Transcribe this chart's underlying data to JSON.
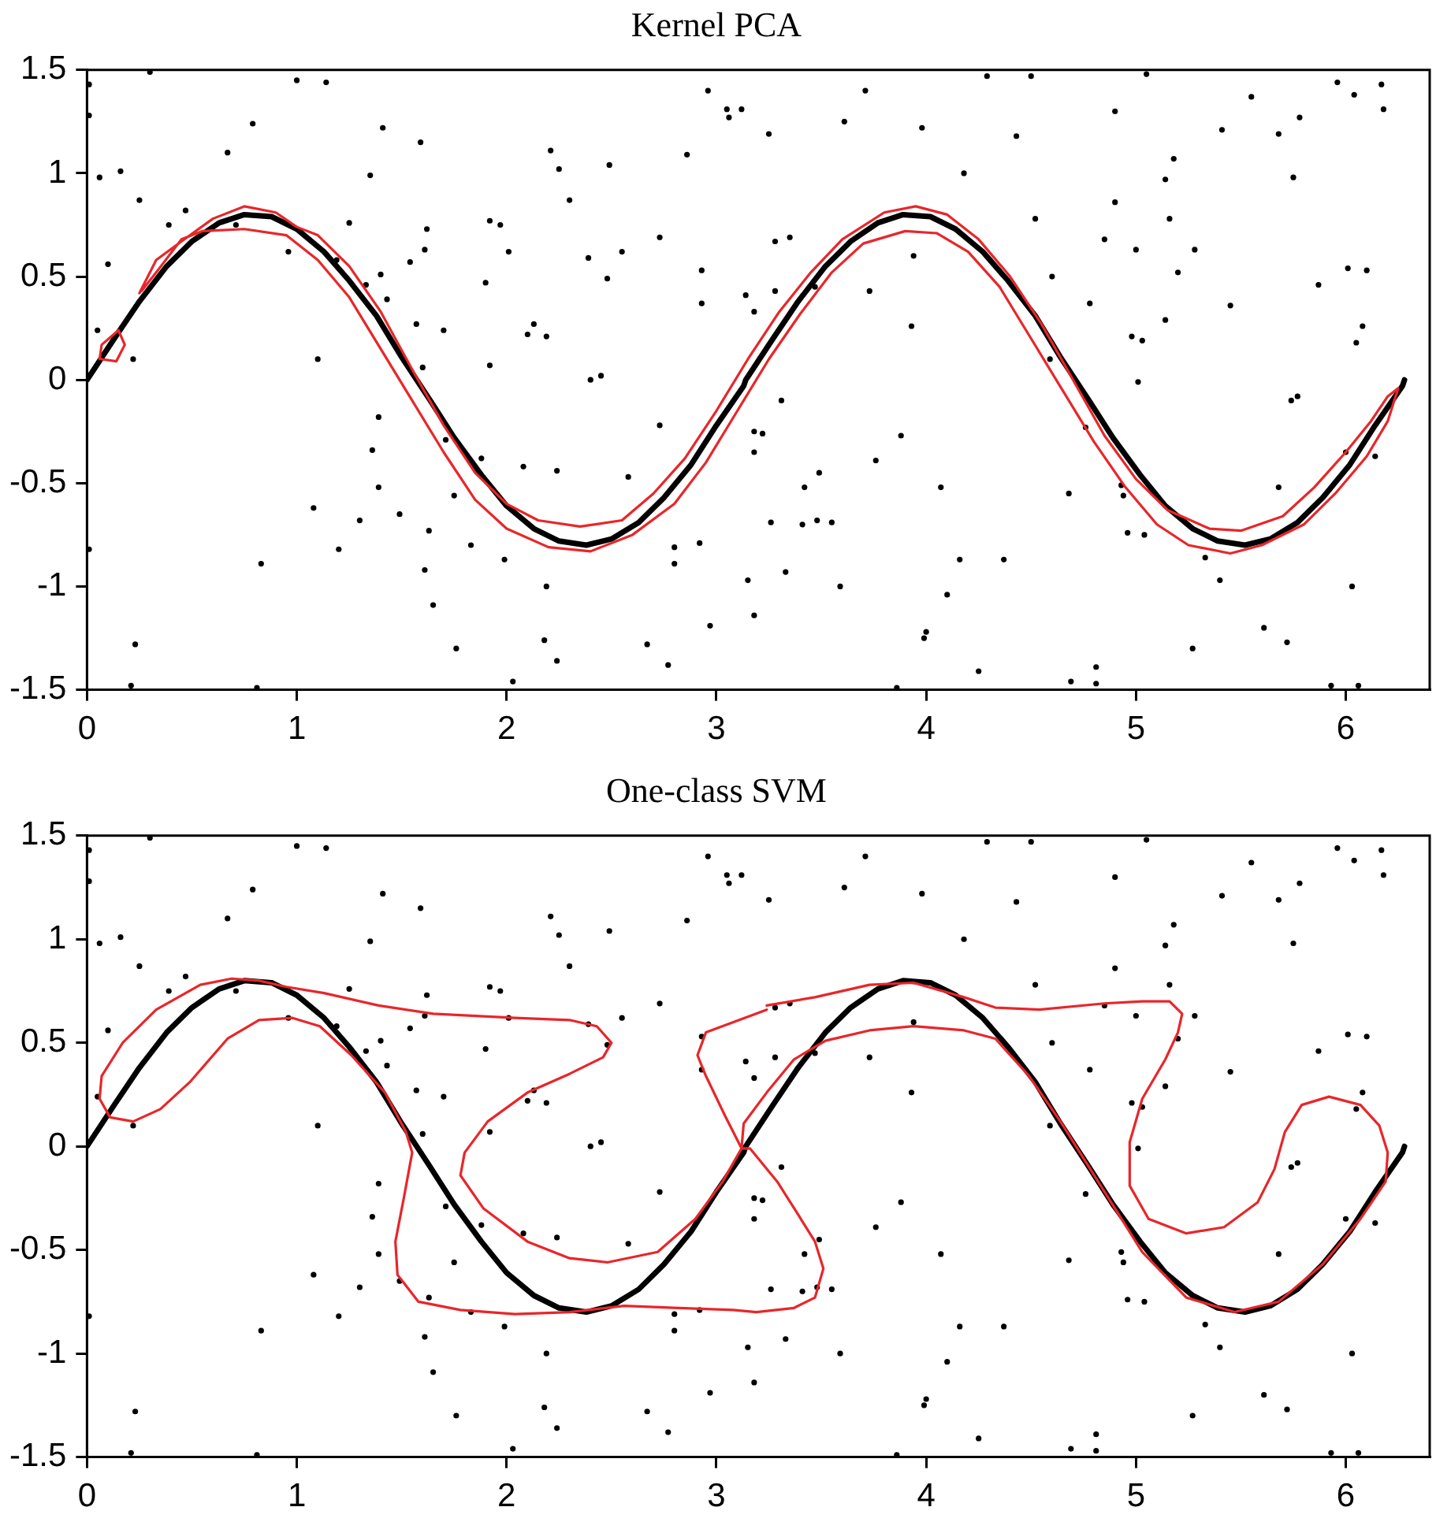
{
  "chart_data": [
    {
      "type": "line",
      "title": "Kernel PCA",
      "xlim": [
        0,
        6.4
      ],
      "xticks": [
        0,
        1,
        2,
        3,
        4,
        5,
        6
      ],
      "ylim": [
        -1.5,
        1.5
      ],
      "yticks": [
        -1.5,
        -1,
        -0.5,
        0,
        0.5,
        1,
        1.5
      ],
      "series": [
        {
          "type": "scatter",
          "marker": "circle",
          "color": "#000000",
          "x": [
            0.3,
            0.01,
            0.01,
            1.0,
            1.14,
            0.79,
            1.41,
            1.59,
            0.67,
            0.16,
            0.06,
            1.35,
            0.25,
            0.47,
            0.39,
            0.71,
            1.25,
            1.62,
            1.92,
            1.97,
            0.96,
            1.61,
            1.54,
            2.01,
            0.1,
            1.19,
            1.4,
            1.9,
            1.33,
            1.43,
            1.57,
            1.7,
            2.1,
            2.13,
            0.05,
            0.22,
            1.1,
            1.6,
            1.92,
            1.39,
            1.36,
            1.71,
            1.88,
            2.08,
            1.39,
            1.75,
            1.08,
            1.3,
            1.49,
            1.63,
            1.83,
            1.99,
            0.01,
            1.2,
            0.83,
            1.61,
            1.65,
            0.23,
            1.76,
            0.21,
            0.81,
            2.03,
            2.96,
            3.71,
            3.05,
            3.12,
            3.06,
            3.61,
            3.98,
            3.25,
            2.21,
            2.86,
            2.25,
            2.49,
            4.18,
            2.3,
            2.73,
            3.28,
            3.35,
            2.39,
            2.55,
            3.94,
            2.93,
            2.48,
            3.14,
            3.28,
            3.73,
            2.93,
            3.18,
            3.47,
            3.93,
            2.19,
            2.4,
            2.45,
            3.31,
            2.73,
            3.18,
            3.22,
            3.18,
            3.88,
            3.76,
            2.24,
            2.58,
            3.49,
            3.42,
            4.07,
            3.26,
            3.41,
            3.48,
            3.55,
            2.8,
            2.92,
            2.8,
            3.33,
            2.19,
            3.15,
            3.59,
            4.16,
            4.1,
            3.18,
            2.97,
            2.18,
            2.67,
            4.0,
            3.99,
            2.24,
            2.77,
            4.25,
            3.86,
            4.29,
            4.5,
            5.05,
            5.96,
            6.04,
            6.17,
            6.18,
            5.55,
            4.9,
            5.41,
            5.68,
            5.78,
            4.43,
            5.18,
            5.14,
            5.75,
            4.9,
            4.52,
            5.16,
            4.85,
            5.0,
            5.28,
            5.2,
            4.6,
            6.01,
            6.1,
            5.87,
            4.78,
            5.45,
            5.14,
            4.98,
            5.03,
            6.08,
            6.05,
            4.59,
            5.01,
            5.74,
            5.77,
            4.76,
            6.14,
            6.0,
            5.68,
            4.93,
            4.94,
            4.68,
            4.96,
            5.04,
            4.37,
            5.33,
            5.4,
            6.03,
            5.61,
            5.72,
            5.27,
            4.81,
            4.69,
            4.81,
            5.93,
            6.06
          ],
          "values": [
            1.49,
            1.43,
            1.28,
            1.45,
            1.44,
            1.24,
            1.22,
            1.15,
            1.1,
            1.01,
            0.98,
            0.99,
            0.87,
            0.82,
            0.75,
            0.75,
            0.76,
            0.73,
            0.77,
            0.75,
            0.62,
            0.63,
            0.57,
            0.62,
            0.56,
            0.58,
            0.51,
            0.47,
            0.46,
            0.39,
            0.27,
            0.24,
            0.22,
            0.27,
            0.24,
            0.1,
            0.1,
            0.06,
            0.07,
            -0.18,
            -0.34,
            -0.29,
            -0.38,
            -0.42,
            -0.52,
            -0.56,
            -0.62,
            -0.68,
            -0.65,
            -0.73,
            -0.8,
            -0.87,
            -0.82,
            -0.82,
            -0.89,
            -0.92,
            -1.09,
            -1.28,
            -1.3,
            -1.48,
            -1.49,
            -1.46,
            1.4,
            1.4,
            1.31,
            1.31,
            1.27,
            1.25,
            1.22,
            1.19,
            1.11,
            1.09,
            1.02,
            1.04,
            1.0,
            0.87,
            0.69,
            0.67,
            0.69,
            0.59,
            0.62,
            0.6,
            0.53,
            0.49,
            0.41,
            0.43,
            0.43,
            0.37,
            0.33,
            0.45,
            0.26,
            0.21,
            0,
            0.02,
            -0.1,
            -0.22,
            -0.25,
            -0.26,
            -0.35,
            -0.27,
            -0.39,
            -0.44,
            -0.47,
            -0.45,
            -0.52,
            -0.52,
            -0.69,
            -0.7,
            -0.68,
            -0.69,
            -0.81,
            -0.79,
            -0.89,
            -0.93,
            -1.0,
            -0.97,
            -1.0,
            -0.87,
            -1.04,
            -1.14,
            -1.19,
            -1.26,
            -1.28,
            -1.22,
            -1.25,
            -1.36,
            -1.38,
            -1.41,
            -1.49,
            1.47,
            1.47,
            1.48,
            1.44,
            1.38,
            1.43,
            1.31,
            1.37,
            1.3,
            1.21,
            1.19,
            1.27,
            1.18,
            1.07,
            0.97,
            0.98,
            0.86,
            0.78,
            0.78,
            0.68,
            0.63,
            0.63,
            0.52,
            0.5,
            0.54,
            0.53,
            0.46,
            0.37,
            0.36,
            0.29,
            0.21,
            0.19,
            0.26,
            0.18,
            0.1,
            -0.01,
            -0.1,
            -0.08,
            -0.23,
            -0.37,
            -0.35,
            -0.52,
            -0.51,
            -0.56,
            -0.55,
            -0.74,
            -0.75,
            -0.87,
            -0.86,
            -0.97,
            -1.0,
            -1.2,
            -1.27,
            -1.3,
            -1.39,
            -1.46,
            -1.47,
            -1.48,
            -1.48
          ]
        },
        {
          "type": "line",
          "marker": "none",
          "color": "#000000",
          "x": [
            0,
            0.13,
            0.25,
            0.38,
            0.5,
            0.63,
            0.75,
            0.88,
            1,
            1.13,
            1.25,
            1.38,
            1.5,
            1.63,
            1.75,
            1.88,
            2,
            2.13,
            2.25,
            2.38,
            2.5,
            2.63,
            2.75,
            2.88,
            3,
            3.13,
            3.14,
            3.27,
            3.39,
            3.52,
            3.64,
            3.77,
            3.89,
            4.02,
            4.14,
            4.27,
            4.39,
            4.52,
            4.64,
            4.77,
            4.89,
            5.02,
            5.14,
            5.27,
            5.39,
            5.52,
            5.64,
            5.77,
            5.89,
            6.02,
            6.14,
            6.27,
            6.28
          ],
          "values": [
            0,
            0.2,
            0.38,
            0.55,
            0.67,
            0.76,
            0.8,
            0.79,
            0.73,
            0.62,
            0.48,
            0.31,
            0.11,
            -0.09,
            -0.28,
            -0.46,
            -0.61,
            -0.72,
            -0.78,
            -0.8,
            -0.77,
            -0.69,
            -0.57,
            -0.41,
            -0.22,
            -0.03,
            0,
            0.2,
            0.38,
            0.55,
            0.67,
            0.76,
            0.8,
            0.79,
            0.73,
            0.62,
            0.48,
            0.31,
            0.11,
            -0.09,
            -0.28,
            -0.46,
            -0.61,
            -0.72,
            -0.78,
            -0.8,
            -0.77,
            -0.69,
            -0.57,
            -0.41,
            -0.22,
            -0.03,
            0
          ]
        },
        {
          "marker": "none",
          "color": "#e8262a",
          "x": [
            0.25,
            0.33,
            0.45,
            0.6,
            0.75,
            0.9,
            1.0,
            1.1,
            1.25,
            1.4,
            1.55,
            1.7,
            1.85,
            2.0,
            2.15,
            2.35,
            2.55,
            2.7,
            2.85,
            3.0,
            3.15,
            3.3,
            3.45,
            3.6,
            3.8,
            3.95,
            4.1,
            4.25,
            4.4,
            4.55,
            4.7,
            4.85,
            5.0,
            5.15,
            5.35,
            5.5,
            5.7,
            5.85,
            6.0,
            6.12,
            6.2,
            6.25,
            6.2,
            6.1,
            5.95,
            5.8,
            5.6,
            5.45,
            5.25,
            5.1,
            4.95,
            4.8,
            4.65,
            4.5,
            4.35,
            4.2,
            4.05,
            3.9,
            3.7,
            3.55,
            3.4,
            3.25,
            3.1,
            2.95,
            2.8,
            2.6,
            2.4,
            2.2,
            2.0,
            1.85,
            1.7,
            1.55,
            1.4,
            1.25,
            1.1,
            0.95,
            0.75,
            0.55,
            0.45,
            0.33,
            0.26
          ],
          "values": [
            0.42,
            0.58,
            0.67,
            0.78,
            0.84,
            0.81,
            0.74,
            0.7,
            0.55,
            0.33,
            0.05,
            -0.22,
            -0.45,
            -0.6,
            -0.68,
            -0.71,
            -0.68,
            -0.55,
            -0.38,
            -0.15,
            0.1,
            0.33,
            0.52,
            0.68,
            0.81,
            0.84,
            0.8,
            0.68,
            0.5,
            0.27,
            0,
            -0.27,
            -0.48,
            -0.63,
            -0.72,
            -0.73,
            -0.66,
            -0.52,
            -0.35,
            -0.2,
            -0.08,
            -0.04,
            -0.2,
            -0.37,
            -0.55,
            -0.7,
            -0.8,
            -0.84,
            -0.8,
            -0.7,
            -0.52,
            -0.3,
            -0.05,
            0.2,
            0.45,
            0.62,
            0.71,
            0.72,
            0.66,
            0.52,
            0.32,
            0.1,
            -0.15,
            -0.4,
            -0.6,
            -0.75,
            -0.83,
            -0.81,
            -0.72,
            -0.58,
            -0.35,
            -0.1,
            0.15,
            0.4,
            0.58,
            0.7,
            0.73,
            0.72,
            0.68,
            0.52,
            0.43
          ]
        },
        {
          "marker": "none",
          "color": "#e8262a",
          "x": [
            0.06,
            0.07,
            0.15,
            0.18,
            0.14,
            0.07
          ],
          "values": [
            0.1,
            0.17,
            0.24,
            0.17,
            0.09,
            0.1
          ]
        }
      ]
    },
    {
      "type": "line",
      "title": "One-class SVM",
      "xlim": [
        0,
        6.4
      ],
      "xticks": [
        0,
        1,
        2,
        3,
        4,
        5,
        6
      ],
      "ylim": [
        -1.5,
        1.5
      ],
      "yticks": [
        -1.5,
        -1,
        -0.5,
        0,
        0.5,
        1,
        1.5
      ],
      "series": [
        {
          "type": "scatter",
          "marker": "circle",
          "color": "#000000",
          "x": [
            0.3,
            0.01,
            0.01,
            1.0,
            1.14,
            0.79,
            1.41,
            1.59,
            0.67,
            0.16,
            0.06,
            1.35,
            0.25,
            0.47,
            0.39,
            0.71,
            1.25,
            1.62,
            1.92,
            1.97,
            0.96,
            1.61,
            1.54,
            2.01,
            0.1,
            1.19,
            1.4,
            1.9,
            1.33,
            1.43,
            1.57,
            1.7,
            2.1,
            2.13,
            0.05,
            0.22,
            1.1,
            1.6,
            1.92,
            1.39,
            1.36,
            1.71,
            1.88,
            2.08,
            1.39,
            1.75,
            1.08,
            1.3,
            1.49,
            1.63,
            1.83,
            1.99,
            0.01,
            1.2,
            0.83,
            1.61,
            1.65,
            0.23,
            1.76,
            0.21,
            0.81,
            2.03,
            2.96,
            3.71,
            3.05,
            3.12,
            3.06,
            3.61,
            3.98,
            3.25,
            2.21,
            2.86,
            2.25,
            2.49,
            4.18,
            2.3,
            2.73,
            3.28,
            3.35,
            2.39,
            2.55,
            3.94,
            2.93,
            2.48,
            3.14,
            3.28,
            3.73,
            2.93,
            3.18,
            3.47,
            3.93,
            2.19,
            2.4,
            2.45,
            3.31,
            2.73,
            3.18,
            3.22,
            3.18,
            3.88,
            3.76,
            2.24,
            2.58,
            3.49,
            3.42,
            4.07,
            3.26,
            3.41,
            3.48,
            3.55,
            2.8,
            2.92,
            2.8,
            3.33,
            2.19,
            3.15,
            3.59,
            4.16,
            4.1,
            3.18,
            2.97,
            2.18,
            2.67,
            4.0,
            3.99,
            2.24,
            2.77,
            4.25,
            3.86,
            4.29,
            4.5,
            5.05,
            5.96,
            6.04,
            6.17,
            6.18,
            5.55,
            4.9,
            5.41,
            5.68,
            5.78,
            4.43,
            5.18,
            5.14,
            5.75,
            4.9,
            4.52,
            5.16,
            4.85,
            5.0,
            5.28,
            5.2,
            4.6,
            6.01,
            6.1,
            5.87,
            4.78,
            5.45,
            5.14,
            4.98,
            5.03,
            6.08,
            6.05,
            4.59,
            5.01,
            5.74,
            5.77,
            4.76,
            6.14,
            6.0,
            5.68,
            4.93,
            4.94,
            4.68,
            4.96,
            5.04,
            4.37,
            5.33,
            5.4,
            6.03,
            5.61,
            5.72,
            5.27,
            4.81,
            4.69,
            4.81,
            5.93,
            6.06
          ],
          "values": [
            1.49,
            1.43,
            1.28,
            1.45,
            1.44,
            1.24,
            1.22,
            1.15,
            1.1,
            1.01,
            0.98,
            0.99,
            0.87,
            0.82,
            0.75,
            0.75,
            0.76,
            0.73,
            0.77,
            0.75,
            0.62,
            0.63,
            0.57,
            0.62,
            0.56,
            0.58,
            0.51,
            0.47,
            0.46,
            0.39,
            0.27,
            0.24,
            0.22,
            0.27,
            0.24,
            0.1,
            0.1,
            0.06,
            0.07,
            -0.18,
            -0.34,
            -0.29,
            -0.38,
            -0.42,
            -0.52,
            -0.56,
            -0.62,
            -0.68,
            -0.65,
            -0.73,
            -0.8,
            -0.87,
            -0.82,
            -0.82,
            -0.89,
            -0.92,
            -1.09,
            -1.28,
            -1.3,
            -1.48,
            -1.49,
            -1.46,
            1.4,
            1.4,
            1.31,
            1.31,
            1.27,
            1.25,
            1.22,
            1.19,
            1.11,
            1.09,
            1.02,
            1.04,
            1.0,
            0.87,
            0.69,
            0.67,
            0.69,
            0.59,
            0.62,
            0.6,
            0.53,
            0.49,
            0.41,
            0.43,
            0.43,
            0.37,
            0.33,
            0.45,
            0.26,
            0.21,
            0,
            0.02,
            -0.1,
            -0.22,
            -0.25,
            -0.26,
            -0.35,
            -0.27,
            -0.39,
            -0.44,
            -0.47,
            -0.45,
            -0.52,
            -0.52,
            -0.69,
            -0.7,
            -0.68,
            -0.69,
            -0.81,
            -0.79,
            -0.89,
            -0.93,
            -1.0,
            -0.97,
            -1.0,
            -0.87,
            -1.04,
            -1.14,
            -1.19,
            -1.26,
            -1.28,
            -1.22,
            -1.25,
            -1.36,
            -1.38,
            -1.41,
            -1.49,
            1.47,
            1.47,
            1.48,
            1.44,
            1.38,
            1.43,
            1.31,
            1.37,
            1.3,
            1.21,
            1.19,
            1.27,
            1.18,
            1.07,
            0.97,
            0.98,
            0.86,
            0.78,
            0.78,
            0.68,
            0.63,
            0.63,
            0.52,
            0.5,
            0.54,
            0.53,
            0.46,
            0.37,
            0.36,
            0.29,
            0.21,
            0.19,
            0.26,
            0.18,
            0.1,
            -0.01,
            -0.1,
            -0.08,
            -0.23,
            -0.37,
            -0.35,
            -0.52,
            -0.51,
            -0.56,
            -0.55,
            -0.74,
            -0.75,
            -0.87,
            -0.86,
            -0.97,
            -1.0,
            -1.2,
            -1.27,
            -1.3,
            -1.39,
            -1.46,
            -1.47,
            -1.48,
            -1.48
          ]
        },
        {
          "type": "line",
          "marker": "none",
          "color": "#000000",
          "x": [
            0,
            0.13,
            0.25,
            0.38,
            0.5,
            0.63,
            0.75,
            0.88,
            1,
            1.13,
            1.25,
            1.38,
            1.5,
            1.63,
            1.75,
            1.88,
            2,
            2.13,
            2.25,
            2.38,
            2.5,
            2.63,
            2.75,
            2.88,
            3,
            3.13,
            3.14,
            3.27,
            3.39,
            3.52,
            3.64,
            3.77,
            3.89,
            4.02,
            4.14,
            4.27,
            4.39,
            4.52,
            4.64,
            4.77,
            4.89,
            5.02,
            5.14,
            5.27,
            5.39,
            5.52,
            5.64,
            5.77,
            5.89,
            6.02,
            6.14,
            6.27,
            6.28
          ],
          "values": [
            0,
            0.2,
            0.38,
            0.55,
            0.67,
            0.76,
            0.8,
            0.79,
            0.73,
            0.62,
            0.48,
            0.31,
            0.11,
            -0.09,
            -0.28,
            -0.46,
            -0.61,
            -0.72,
            -0.78,
            -0.8,
            -0.77,
            -0.69,
            -0.57,
            -0.41,
            -0.22,
            -0.03,
            0,
            0.2,
            0.38,
            0.55,
            0.67,
            0.76,
            0.8,
            0.79,
            0.73,
            0.62,
            0.48,
            0.31,
            0.11,
            -0.09,
            -0.28,
            -0.46,
            -0.61,
            -0.72,
            -0.78,
            -0.8,
            -0.77,
            -0.69,
            -0.57,
            -0.41,
            -0.22,
            -0.03,
            0
          ]
        },
        {
          "marker": "none",
          "color": "#e8262a",
          "x": [
            3.24,
            2.95,
            2.91,
            2.95,
            3.04,
            3.12,
            3.16,
            3.29,
            3.39,
            3.47,
            3.51,
            3.47,
            3.37,
            3.19,
            3.08,
            2.82,
            2.56,
            2.3,
            2.04,
            1.78,
            1.58,
            1.48,
            1.47,
            1.51,
            1.55,
            1.52,
            1.42,
            1.26,
            1.11,
            0.98,
            0.82,
            0.67,
            0.49,
            0.35,
            0.22,
            0.11,
            0.06,
            0.07,
            0.17,
            0.33,
            0.54,
            0.69,
            0.82,
            0.95,
            1.13,
            1.39,
            1.65,
            2.04,
            2.3,
            2.43,
            2.5,
            2.46,
            2.3,
            2.1,
            1.91,
            1.8,
            1.78,
            1.89,
            2.1,
            2.3,
            2.48,
            2.72,
            2.9,
            3.03,
            3.12,
            3.13,
            3.24,
            3.37,
            3.52,
            3.73,
            3.94,
            4.18,
            4.33,
            4.49,
            4.64,
            4.77,
            4.9,
            5.03,
            5.24,
            5.47,
            5.68,
            5.89,
            6.07,
            6.19,
            6.2,
            6.16,
            6.07,
            5.92,
            5.79,
            5.71,
            5.66,
            5.58,
            5.42,
            5.24,
            5.06,
            4.97,
            4.97,
            5.03,
            5.14,
            5.2,
            5.22,
            5.16,
            5.03,
            4.85,
            4.54,
            4.33,
            4.18,
            3.94,
            3.73,
            3.47,
            3.24
          ],
          "values": [
            0.66,
            0.55,
            0.44,
            0.34,
            0.15,
            -0.01,
            -0.01,
            -0.17,
            -0.33,
            -0.46,
            -0.59,
            -0.73,
            -0.78,
            -0.8,
            -0.79,
            -0.78,
            -0.77,
            -0.8,
            -0.81,
            -0.79,
            -0.75,
            -0.62,
            -0.46,
            -0.25,
            -0.03,
            0.07,
            0.26,
            0.44,
            0.58,
            0.62,
            0.61,
            0.52,
            0.31,
            0.18,
            0.12,
            0.14,
            0.23,
            0.34,
            0.5,
            0.66,
            0.78,
            0.81,
            0.8,
            0.77,
            0.74,
            0.68,
            0.64,
            0.62,
            0.61,
            0.58,
            0.5,
            0.43,
            0.35,
            0.26,
            0.12,
            -0.03,
            -0.14,
            -0.3,
            -0.46,
            -0.54,
            -0.56,
            -0.51,
            -0.35,
            -0.17,
            -0.01,
            0.11,
            0.26,
            0.42,
            0.51,
            0.56,
            0.58,
            0.56,
            0.52,
            0.34,
            0.12,
            -0.09,
            -0.3,
            -0.51,
            -0.73,
            -0.8,
            -0.75,
            -0.57,
            -0.35,
            -0.17,
            -0.03,
            0.1,
            0.2,
            0.24,
            0.2,
            0.07,
            -0.11,
            -0.27,
            -0.39,
            -0.42,
            -0.35,
            -0.19,
            0.02,
            0.23,
            0.42,
            0.55,
            0.64,
            0.7,
            0.7,
            0.69,
            0.66,
            0.67,
            0.72,
            0.79,
            0.78,
            0.72,
            0.68
          ]
        }
      ]
    }
  ]
}
